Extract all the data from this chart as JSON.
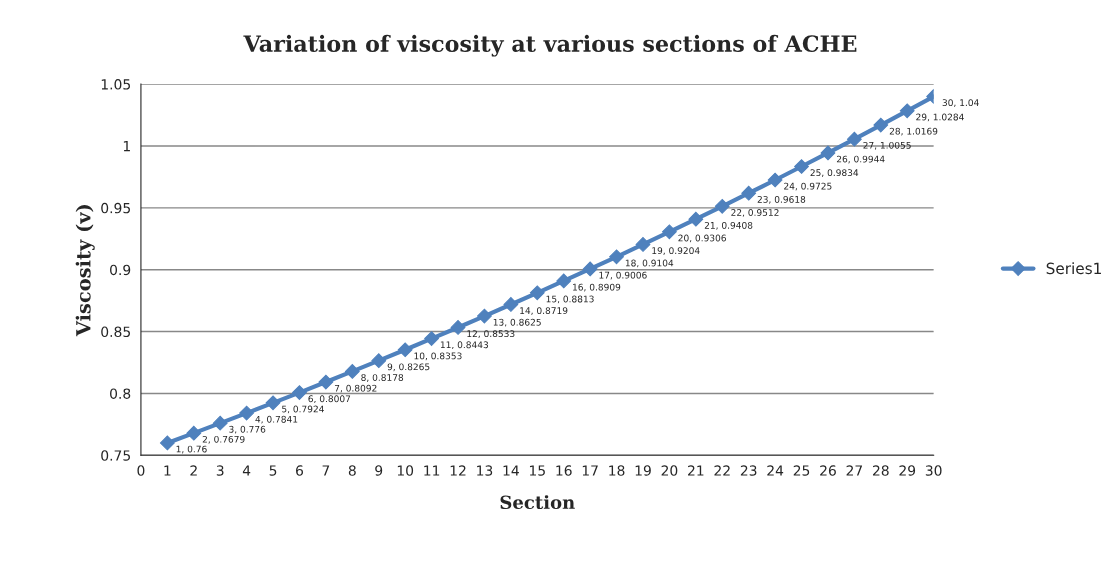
{
  "chart_data": {
    "type": "line",
    "title": "Variation of viscosity at various sections of ACHE",
    "xlabel": "Section",
    "ylabel": "Viscosity (v)",
    "x": [
      1,
      2,
      3,
      4,
      5,
      6,
      7,
      8,
      9,
      10,
      11,
      12,
      13,
      14,
      15,
      16,
      17,
      18,
      19,
      20,
      21,
      22,
      23,
      24,
      25,
      26,
      27,
      28,
      29,
      30
    ],
    "series": [
      {
        "name": "Series1",
        "color": "#4f81bd",
        "values": [
          0.76,
          0.7679,
          0.776,
          0.7841,
          0.7924,
          0.8007,
          0.8092,
          0.8178,
          0.8265,
          0.8353,
          0.8443,
          0.8533,
          0.8625,
          0.8719,
          0.8813,
          0.8909,
          0.9006,
          0.9104,
          0.9204,
          0.9306,
          0.9408,
          0.9512,
          0.9618,
          0.9725,
          0.9834,
          0.9944,
          1.0055,
          1.0169,
          1.0284,
          1.04
        ],
        "value_labels": [
          "1, 0.76",
          "2, 0.7679",
          "3, 0.776",
          "4, 0.7841",
          "5, 0.7924",
          "6, 0.8007",
          "7, 0.8092",
          "8, 0.8178",
          "9, 0.8265",
          "10, 0.8353",
          "11, 0.8443",
          "12, 0.8533",
          "13, 0.8625",
          "14, 0.8719",
          "15, 0.8813",
          "16, 0.8909",
          "17, 0.9006",
          "18, 0.9104",
          "19, 0.9204",
          "20, 0.9306",
          "21, 0.9408",
          "22, 0.9512",
          "23, 0.9618",
          "24, 0.9725",
          "25, 0.9834",
          "26, 0.9944",
          "27, 1.0055",
          "28, 1.0169",
          "29, 1.0284",
          "30, 1.04"
        ]
      }
    ],
    "xlim": [
      0,
      30
    ],
    "xticks": [
      0,
      1,
      2,
      3,
      4,
      5,
      6,
      7,
      8,
      9,
      10,
      11,
      12,
      13,
      14,
      15,
      16,
      17,
      18,
      19,
      20,
      21,
      22,
      23,
      24,
      25,
      26,
      27,
      28,
      29,
      30
    ],
    "ylim": [
      0.75,
      1.05
    ],
    "yticks": [
      {
        "value": 0.75,
        "label": "0.75"
      },
      {
        "value": 0.8,
        "label": "0.8"
      },
      {
        "value": 0.85,
        "label": "0.85"
      },
      {
        "value": 0.9,
        "label": "0.9"
      },
      {
        "value": 0.95,
        "label": "0.95"
      },
      {
        "value": 1,
        "label": "1"
      },
      {
        "value": 1.05,
        "label": "1.05"
      }
    ],
    "grid": "y",
    "legend": "right",
    "marker": "diamond",
    "line_style": "solid"
  }
}
